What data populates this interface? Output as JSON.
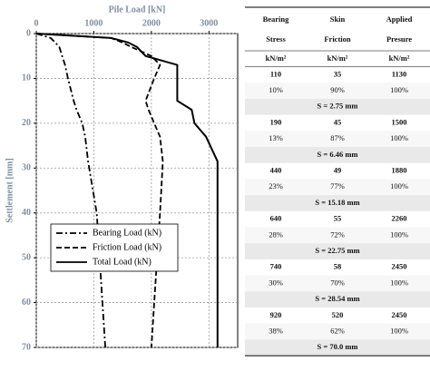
{
  "chart_data": {
    "type": "line",
    "x_label": "Pile Load [kN]",
    "y_label": "Settlement [mm]",
    "y": [
      0,
      1,
      2,
      3,
      5,
      7,
      10,
      15,
      17,
      20,
      23,
      28.5,
      40,
      50,
      60,
      70
    ],
    "series": [
      {
        "name": "Bearing Load (kN)",
        "color": "#000000",
        "dash": "dashdot",
        "values": [
          0,
          250,
          330,
          400,
          450,
          500,
          550,
          650,
          700,
          800,
          850,
          900,
          1050,
          1100,
          1150,
          1200
        ]
      },
      {
        "name": "Friction Load (kN)",
        "color": "#000000",
        "dash": "dashed",
        "values": [
          0,
          1300,
          1500,
          1650,
          2000,
          2150,
          2050,
          1900,
          1950,
          2050,
          2150,
          2200,
          2150,
          2100,
          2050,
          2000
        ]
      },
      {
        "name": "Total Load (kN)",
        "color": "#000000",
        "dash": "solid",
        "values": [
          0,
          1300,
          1600,
          1750,
          1900,
          2450,
          2450,
          2450,
          2700,
          2750,
          2950,
          3150,
          3150,
          3150,
          3150,
          3150
        ]
      }
    ],
    "xlim": [
      0,
      3500
    ],
    "xticks": [
      0,
      1000,
      2000,
      3000
    ],
    "ylim": [
      0,
      70
    ],
    "yticks": [
      0,
      10,
      20,
      30,
      40,
      50,
      60,
      70
    ],
    "y_inverted": true,
    "x_axis_top": true,
    "grid": true,
    "legend": "lower left"
  },
  "table": {
    "header": [
      "Bearing Stress",
      "Skin Friction",
      "Applied Presure"
    ],
    "units": [
      "kN/m²",
      "kN/m²",
      "kN/m²"
    ],
    "groups": [
      {
        "values": [
          "110",
          "35",
          "1130"
        ],
        "percents": [
          "10%",
          "90%",
          "100%"
        ],
        "settlement": "S = 2.75 mm"
      },
      {
        "values": [
          "190",
          "45",
          "1500"
        ],
        "percents": [
          "13%",
          "87%",
          "100%"
        ],
        "settlement": "S = 6.46 mm"
      },
      {
        "values": [
          "440",
          "49",
          "1880"
        ],
        "percents": [
          "23%",
          "77%",
          "100%"
        ],
        "settlement": "S = 15.18 mm"
      },
      {
        "values": [
          "640",
          "55",
          "2260"
        ],
        "percents": [
          "28%",
          "72%",
          "100%"
        ],
        "settlement": "S = 22.75 mm"
      },
      {
        "values": [
          "740",
          "58",
          "2450"
        ],
        "percents": [
          "30%",
          "70%",
          "100%"
        ],
        "settlement": "S = 28.54 mm"
      },
      {
        "values": [
          "920",
          "520",
          "2450"
        ],
        "percents": [
          "38%",
          "62%",
          "100%"
        ],
        "settlement": "S = 70.0 mm"
      }
    ]
  }
}
